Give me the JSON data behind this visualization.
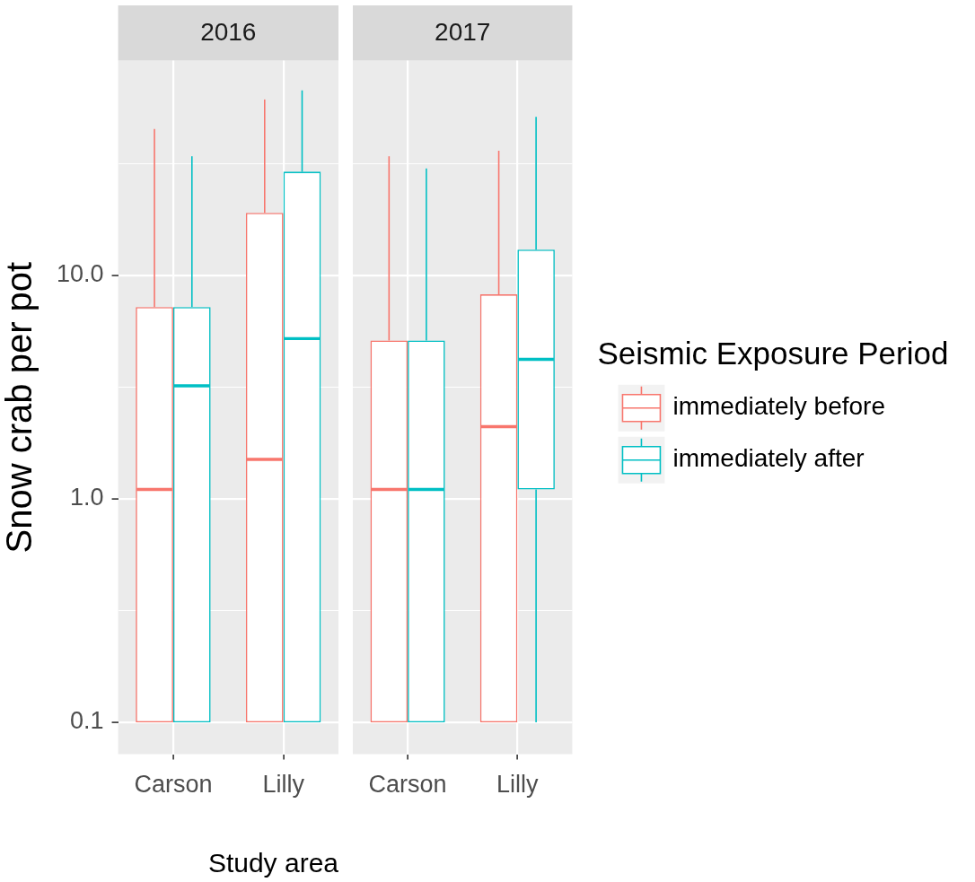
{
  "chart_data": [
    {
      "type": "box",
      "title": "2016",
      "xlabel": "Study area",
      "ylabel": "Snow crab per pot",
      "categories": [
        "Carson",
        "Lilly"
      ],
      "series": [
        {
          "color": "#f8766d",
          "boxes": [
            {
              "low": 0.1,
              "q1": 0.1,
              "median": 1.1,
              "q3": 7.2,
              "high": 45
            },
            {
              "low": 0.1,
              "q1": 0.1,
              "median": 1.5,
              "q3": 19,
              "high": 61
            }
          ]
        },
        {
          "color": "#00bfc4",
          "boxes": [
            {
              "low": 0.1,
              "q1": 0.1,
              "median": 3.2,
              "q3": 7.2,
              "high": 34
            },
            {
              "low": 0.1,
              "q1": 0.1,
              "median": 5.2,
              "q3": 29,
              "high": 67
            }
          ]
        }
      ],
      "log": true,
      "ylim": [
        0.072,
        91
      ],
      "yticks": [
        0.1,
        {
          "value": 0.316,
          "label": null
        },
        {
          "value": 1,
          "label": "1.0"
        },
        {
          "value": 3.16,
          "label": null
        },
        {
          "value": 10,
          "label": "10.0"
        },
        {
          "value": 31.6,
          "label": null
        }
      ],
      "grid": true
    },
    {
      "type": "box",
      "title": "2017",
      "categories": [
        "Carson",
        "Lilly"
      ],
      "series": [
        {
          "name": "immediately before",
          "color": "#f8766d",
          "boxes": [
            {
              "low": 0.1,
              "q1": 0.1,
              "median": 1.1,
              "q3": 5.1,
              "high": 34
            },
            {
              "low": 0.1,
              "q1": 0.1,
              "median": 2.1,
              "q3": 8.2,
              "high": 36
            }
          ]
        },
        {
          "name": "immediately after",
          "color": "#00bfc4",
          "boxes": [
            {
              "low": 0.1,
              "q1": 0.1,
              "median": 1.1,
              "q3": 5.1,
              "high": 30
            },
            {
              "low": 0.1,
              "q1": 1.1,
              "median": 4.2,
              "q3": 13,
              "high": 51
            }
          ]
        }
      ],
      "log": true,
      "ylim": [
        0.072,
        91
      ],
      "yticks": [
        0.1,
        {
          "value": 0.316,
          "label": null
        },
        1,
        {
          "value": 3.16,
          "label": null
        },
        10,
        {
          "value": 31.6,
          "label": null
        }
      ],
      "grid": true,
      "tick_labels": "x",
      "legend": "right",
      "legend_title": "Seismic Exposure Period"
    }
  ]
}
